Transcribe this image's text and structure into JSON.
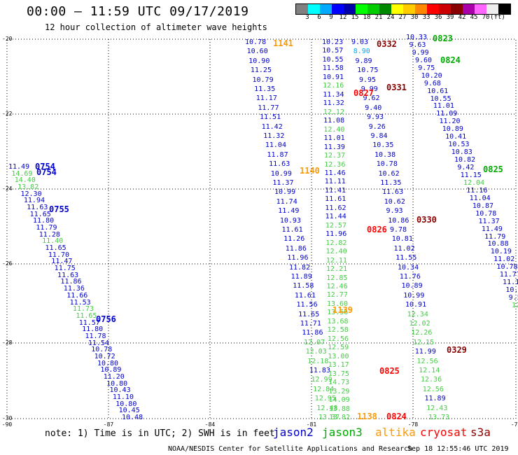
{
  "title": "00:00 – 11:59 UTC 09/17/2019",
  "subtitle": "12 hour collection of altimeter wave heights",
  "scale": {
    "colors": [
      "#808080",
      "#00ffff",
      "#00aaff",
      "#0000ff",
      "#0000aa",
      "#00ff00",
      "#00cc00",
      "#008800",
      "#ffff00",
      "#ffcc00",
      "#ff8800",
      "#ff0000",
      "#cc0000",
      "#880000",
      "#aa00aa",
      "#ff66ff",
      "#eeeeee",
      "#000000"
    ],
    "labels": [
      "3",
      "6",
      "9",
      "12",
      "15",
      "18",
      "21",
      "24",
      "27",
      "30",
      "33",
      "36",
      "39",
      "42",
      "45",
      "70",
      "(ft)"
    ]
  },
  "axes": {
    "lat_labels": [
      "-20",
      "-22",
      "-24",
      "-26",
      "-28",
      "-30"
    ],
    "lon_labels": [
      "-90",
      "-87",
      "-84",
      "-81",
      "-78",
      "-75"
    ]
  },
  "note": "note: 1) Time is in UTC; 2) SWH is in feet",
  "legend": [
    {
      "name": "jason2",
      "color": "#0000cc"
    },
    {
      "name": "jason3",
      "color": "#00aa00"
    },
    {
      "name": "altika",
      "color": "#ff9900"
    },
    {
      "name": "cryosat",
      "color": "#ff0000"
    },
    {
      "name": "s3a",
      "color": "#880000"
    }
  ],
  "credit": "NOAA/NESDIS Center for Satellite Applications and Research",
  "generated": "Sep 18 12:55:46 UTC 2019",
  "times": [
    {
      "text": "0754",
      "color": "#0000cc"
    },
    {
      "text": "0754",
      "color": "#0000cc"
    },
    {
      "text": "0755",
      "color": "#0000cc"
    },
    {
      "text": "0756",
      "color": "#0000cc"
    },
    {
      "text": "1141",
      "color": "#ff9900"
    },
    {
      "text": "1140",
      "color": "#ff9900"
    },
    {
      "text": "1139",
      "color": "#ff9900"
    },
    {
      "text": "1138",
      "color": "#ff9900"
    },
    {
      "text": "0332",
      "color": "#880000"
    },
    {
      "text": "0331",
      "color": "#880000"
    },
    {
      "text": "0330",
      "color": "#880000"
    },
    {
      "text": "0329",
      "color": "#880000"
    },
    {
      "text": "0827",
      "color": "#ff0000"
    },
    {
      "text": "0826",
      "color": "#ff0000"
    },
    {
      "text": "0825",
      "color": "#ff0000"
    },
    {
      "text": "0824",
      "color": "#ff0000"
    },
    {
      "text": "0823",
      "color": "#00aa00"
    },
    {
      "text": "0824",
      "color": "#00aa00"
    },
    {
      "text": "0825",
      "color": "#00aa00"
    }
  ],
  "tracks": {
    "track_a": {
      "color_blue": "#0000cc",
      "color_green": "#44cc44",
      "values": [
        "11.49",
        "14.69",
        "14.40",
        "13.82",
        "12.30",
        "11.94",
        "11.63",
        "11.65",
        "11.80",
        "11.79",
        "11.28",
        "11.40",
        "11.65",
        "11.70",
        "11.47",
        "11.75",
        "11.63",
        "11.86",
        "11.36",
        "11.66",
        "11.53",
        "11.73",
        "11.65",
        "11.57",
        "11.80",
        "11.78",
        "11.54",
        "10.78",
        "10.72",
        "10.80",
        "10.89",
        "11.20",
        "10.80",
        "10.43",
        "11.10",
        "10.80",
        "10.45",
        "10.48"
      ],
      "green": [
        1,
        2,
        3,
        11,
        21,
        22
      ]
    },
    "track_b": {
      "values": [
        "10.78",
        "10.60",
        "10.90",
        "11.25",
        "10.79",
        "11.35",
        "11.17",
        "11.77",
        "11.51",
        "11.42",
        "11.32",
        "11.04",
        "11.87",
        "11.63",
        "10.99",
        "11.37",
        "10.99",
        "11.74",
        "11.49",
        "10.93",
        "11.61",
        "11.26",
        "11.86",
        "11.96",
        "11.82",
        "11.89",
        "11.58",
        "11.61",
        "11.56",
        "11.65",
        "11.71",
        "11.86",
        "12.07",
        "12.03",
        "12.18",
        "11.83",
        "12.99",
        "12.84",
        "12.95",
        "12.48",
        "13.37"
      ],
      "green": [
        32,
        33,
        34,
        36,
        37,
        38,
        39,
        40
      ]
    },
    "track_c": {
      "values": [
        "10.23",
        "10.57",
        "10.55",
        "11.58",
        "10.91",
        "12.16",
        "11.34",
        "11.32",
        "12.12",
        "11.08",
        "12.40",
        "11.01",
        "11.39",
        "12.37",
        "12.36",
        "11.46",
        "11.11",
        "11.41",
        "11.61",
        "11.62",
        "11.44",
        "12.57",
        "11.96",
        "12.82",
        "12.40",
        "12.11",
        "12.21",
        "12.85",
        "12.46",
        "12.77",
        "13.60",
        "13.56",
        "13.68",
        "12.58",
        "12.56",
        "12.59",
        "13.00",
        "13.17",
        "13.75",
        "14.73",
        "13.29",
        "14.09",
        "13.88",
        "13.82"
      ],
      "green": [
        5,
        8,
        10,
        13,
        14,
        21,
        23,
        24,
        25,
        26,
        27,
        28,
        29,
        30,
        31,
        32,
        33,
        34,
        35,
        36,
        37,
        38,
        39,
        40,
        41,
        42,
        43
      ]
    },
    "track_d": {
      "values": [
        "9.03",
        "8.90",
        "9.89",
        "10.75",
        "9.95",
        "9.99",
        "9.62",
        "9.40",
        "9.93",
        "9.26",
        "9.84",
        "10.35",
        "10.38",
        "10.78",
        "10.62",
        "11.35",
        "11.63",
        "10.62",
        "9.93",
        "10.86",
        "9.78",
        "10.81",
        "11.02",
        "11.55",
        "10.34",
        "11.76",
        "10.89",
        "10.99",
        "10.91",
        "12.34",
        "12.02",
        "12.26",
        "12.15",
        "11.99",
        "12.56",
        "12.14",
        "12.36",
        "12.56",
        "11.89",
        "12.43",
        "13.73"
      ],
      "green": [
        29,
        30,
        31,
        32,
        34,
        35,
        36,
        37,
        39,
        40
      ],
      "cyan": [
        1
      ]
    },
    "track_e": {
      "values": [
        "10.33",
        "9.63",
        "9.99",
        "9.60",
        "9.75",
        "10.20",
        "9.68",
        "10.61",
        "10.55",
        "11.01",
        "11.09",
        "11.20",
        "10.89",
        "10.41",
        "10.53",
        "10.83",
        "10.82",
        "9.42",
        "11.15",
        "12.04",
        "11.16",
        "11.04",
        "10.87",
        "10.78",
        "11.37",
        "11.49",
        "11.79",
        "10.88",
        "10.19",
        "11.02",
        "10.78",
        "11.77",
        "11.18",
        "10.2",
        "9.5",
        "12"
      ],
      "green": [
        19,
        35
      ]
    }
  }
}
